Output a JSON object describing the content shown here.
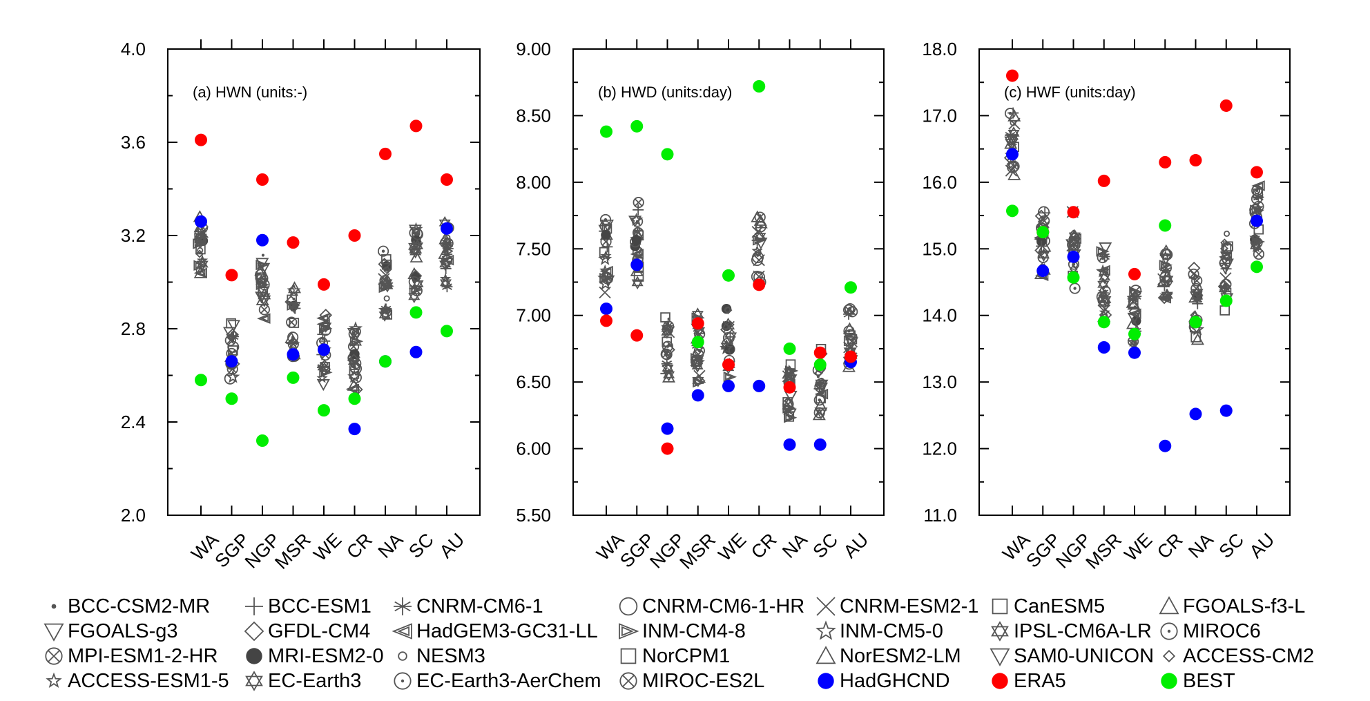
{
  "colors": {
    "model": "#555555",
    "HadGHCND": "#0000ff",
    "ERA5": "#ff0000",
    "BEST": "#00ee00"
  },
  "chart_data": [
    {
      "type": "scatter",
      "panel_label": "(a) HWN  (units:-)",
      "categories": [
        "WA",
        "SGP",
        "NGP",
        "MSR",
        "WE",
        "CR",
        "NA",
        "SC",
        "AU"
      ],
      "ylim": [
        2.0,
        4.0
      ],
      "yticks": [
        "2.0",
        "2.4",
        "2.8",
        "3.2",
        "3.6",
        "4.0"
      ],
      "series": [
        {
          "name": "HadGHCND",
          "values": [
            3.26,
            2.66,
            3.18,
            2.69,
            2.71,
            2.37,
            2.66,
            2.7,
            3.23
          ]
        },
        {
          "name": "ERA5",
          "values": [
            3.61,
            3.03,
            3.44,
            3.17,
            2.99,
            3.2,
            3.55,
            3.67,
            3.44
          ]
        },
        {
          "name": "BEST",
          "values": [
            2.58,
            2.5,
            2.32,
            2.59,
            2.45,
            2.5,
            2.66,
            2.87,
            2.79
          ]
        }
      ]
    },
    {
      "type": "scatter",
      "panel_label": "(b) HWD  (units:day)",
      "categories": [
        "WA",
        "SGP",
        "NGP",
        "MSR",
        "WE",
        "CR",
        "NA",
        "SC",
        "AU"
      ],
      "ylim": [
        5.5,
        9.0
      ],
      "yticks": [
        "5.50",
        "6.00",
        "6.50",
        "7.00",
        "7.50",
        "8.00",
        "8.50",
        "9.00"
      ],
      "series": [
        {
          "name": "HadGHCND",
          "values": [
            7.05,
            7.38,
            6.15,
            6.4,
            6.47,
            6.47,
            6.03,
            6.03,
            6.65
          ]
        },
        {
          "name": "ERA5",
          "values": [
            6.96,
            6.85,
            6.0,
            6.94,
            6.63,
            7.23,
            6.46,
            6.72,
            6.69
          ]
        },
        {
          "name": "BEST",
          "values": [
            8.38,
            8.42,
            8.21,
            6.8,
            7.3,
            8.72,
            6.75,
            6.63,
            7.21
          ]
        }
      ]
    },
    {
      "type": "scatter",
      "panel_label": "(c) HWF  (units:day)",
      "categories": [
        "WA",
        "SGP",
        "NGP",
        "MSR",
        "WE",
        "CR",
        "NA",
        "SC",
        "AU"
      ],
      "ylim": [
        11.0,
        18.0
      ],
      "yticks": [
        "11.0",
        "12.0",
        "13.0",
        "14.0",
        "15.0",
        "16.0",
        "17.0",
        "18.0"
      ],
      "series": [
        {
          "name": "HadGHCND",
          "values": [
            16.42,
            14.67,
            14.88,
            13.52,
            13.44,
            12.04,
            12.52,
            12.57,
            15.42
          ]
        },
        {
          "name": "ERA5",
          "values": [
            17.6,
            15.25,
            15.55,
            16.02,
            14.62,
            16.3,
            16.33,
            17.15,
            16.15
          ]
        },
        {
          "name": "BEST",
          "values": [
            15.57,
            15.25,
            14.57,
            13.9,
            13.72,
            15.35,
            13.9,
            14.22,
            14.73
          ]
        }
      ]
    }
  ],
  "legend": [
    {
      "label": "BCC-CSM2-MR",
      "icon": "small-dot"
    },
    {
      "label": "BCC-ESM1",
      "icon": "plus"
    },
    {
      "label": "CNRM-CM6-1",
      "icon": "asterisk"
    },
    {
      "label": "CNRM-CM6-1-HR",
      "icon": "circle"
    },
    {
      "label": "CNRM-ESM2-1",
      "icon": "x-cross"
    },
    {
      "label": "CanESM5",
      "icon": "square"
    },
    {
      "label": "FGOALS-f3-L",
      "icon": "triangle-up"
    },
    {
      "label": "FGOALS-g3",
      "icon": "triangle-down"
    },
    {
      "label": "GFDL-CM4",
      "icon": "diamond"
    },
    {
      "label": "HadGEM3-GC31-LL",
      "icon": "triangle-left-hatched"
    },
    {
      "label": "INM-CM4-8",
      "icon": "triangle-right-hatched"
    },
    {
      "label": "INM-CM5-0",
      "icon": "star"
    },
    {
      "label": "IPSL-CM6A-LR",
      "icon": "hexagram"
    },
    {
      "label": "MIROC6",
      "icon": "circle-dot"
    },
    {
      "label": "MPI-ESM1-2-HR",
      "icon": "circle-x"
    },
    {
      "label": "MRI-ESM2-0",
      "icon": "filled-circle"
    },
    {
      "label": "NESM3",
      "icon": "small-circle"
    },
    {
      "label": "NorCPM1",
      "icon": "square"
    },
    {
      "label": "NorESM2-LM",
      "icon": "triangle-up"
    },
    {
      "label": "SAM0-UNICON",
      "icon": "triangle-down"
    },
    {
      "label": "ACCESS-CM2",
      "icon": "small-diamond"
    },
    {
      "label": "ACCESS-ESM1-5",
      "icon": "small-star"
    },
    {
      "label": "EC-Earth3",
      "icon": "hexagram"
    },
    {
      "label": "EC-Earth3-AerChem",
      "icon": "circle-dot"
    },
    {
      "label": "MIROC-ES2L",
      "icon": "circle-x"
    },
    {
      "label": "HadGHCND",
      "icon": "filled-circle-blue"
    },
    {
      "label": "ERA5",
      "icon": "filled-circle-red"
    },
    {
      "label": "BEST",
      "icon": "filled-circle-green"
    }
  ]
}
